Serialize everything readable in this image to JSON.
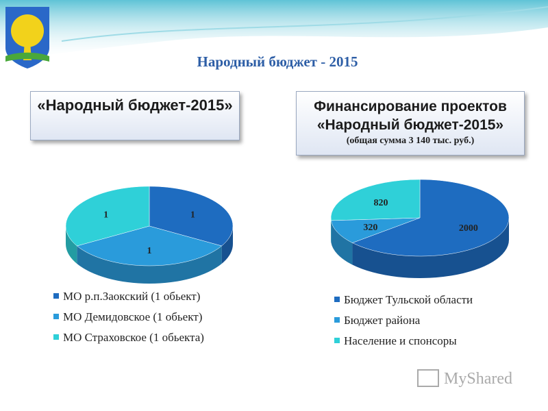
{
  "slide_title": "Народный бюджет - 2015",
  "watermark": "MyShared",
  "chart_data": [
    {
      "type": "pie",
      "title": "«Народный бюджет-2015»",
      "categories": [
        "МО р.п.Заокский (1 обьект)",
        "МО Демидовское (1 обьект)",
        "МО Страховское (1 обьекта)"
      ],
      "values": [
        1,
        1,
        1
      ],
      "colors": [
        "#1e6cc0",
        "#2a9bdb",
        "#2fd0d8"
      ]
    },
    {
      "type": "pie",
      "title": "Финансирование проектов «Народный бюджет-2015»",
      "subtitle": "(общая сумма 3 140 тыс. руб.)",
      "categories": [
        "Бюджет Тульской области",
        "Бюджет района",
        "Население и спонсоры"
      ],
      "values": [
        2000,
        320,
        820
      ],
      "colors": [
        "#1e6cc0",
        "#2a9bdb",
        "#2fd0d8"
      ]
    }
  ]
}
